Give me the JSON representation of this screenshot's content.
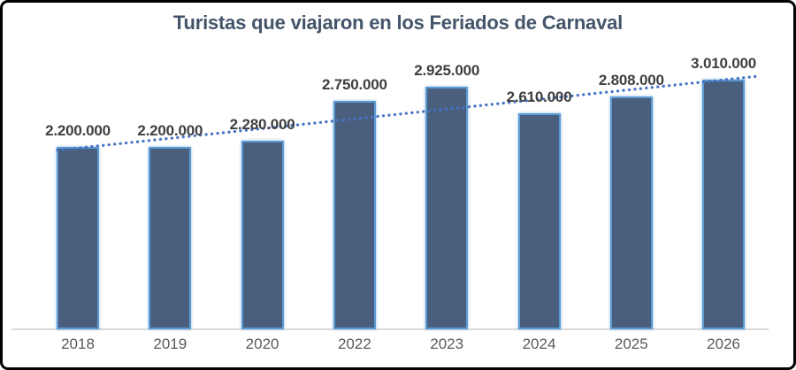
{
  "frame": {
    "border_color": "#000000",
    "background_color": "#ffffff"
  },
  "chart_data": {
    "type": "bar",
    "title": "Turistas que viajaron en los Feriados de Carnaval",
    "categories": [
      "2018",
      "2019",
      "2020",
      "2022",
      "2023",
      "2024",
      "2025",
      "2026"
    ],
    "values": [
      2200000,
      2200000,
      2280000,
      2750000,
      2925000,
      2610000,
      2808000,
      3010000
    ],
    "labels": [
      "2.200.000",
      "2.200.000",
      "2.280.000",
      "2.750.000",
      "2.925.000",
      "2.610.000",
      "2.808.000",
      "3.010.000"
    ],
    "xlabel": "",
    "ylabel": "",
    "ylim": [
      0,
      3200000
    ],
    "grid": false,
    "legend": "none",
    "data_labels_position": "above-bars",
    "trendline": {
      "style": "dotted",
      "type": "linear",
      "color": "#4472c4"
    },
    "colors": {
      "bar_fill": "#4a5f7d",
      "bar_border": "#5b9bd5",
      "data_label": "#3f3f3f",
      "category_text": "#595959",
      "title_text": "#44546a",
      "axis_line": "#d9d9d9"
    }
  }
}
